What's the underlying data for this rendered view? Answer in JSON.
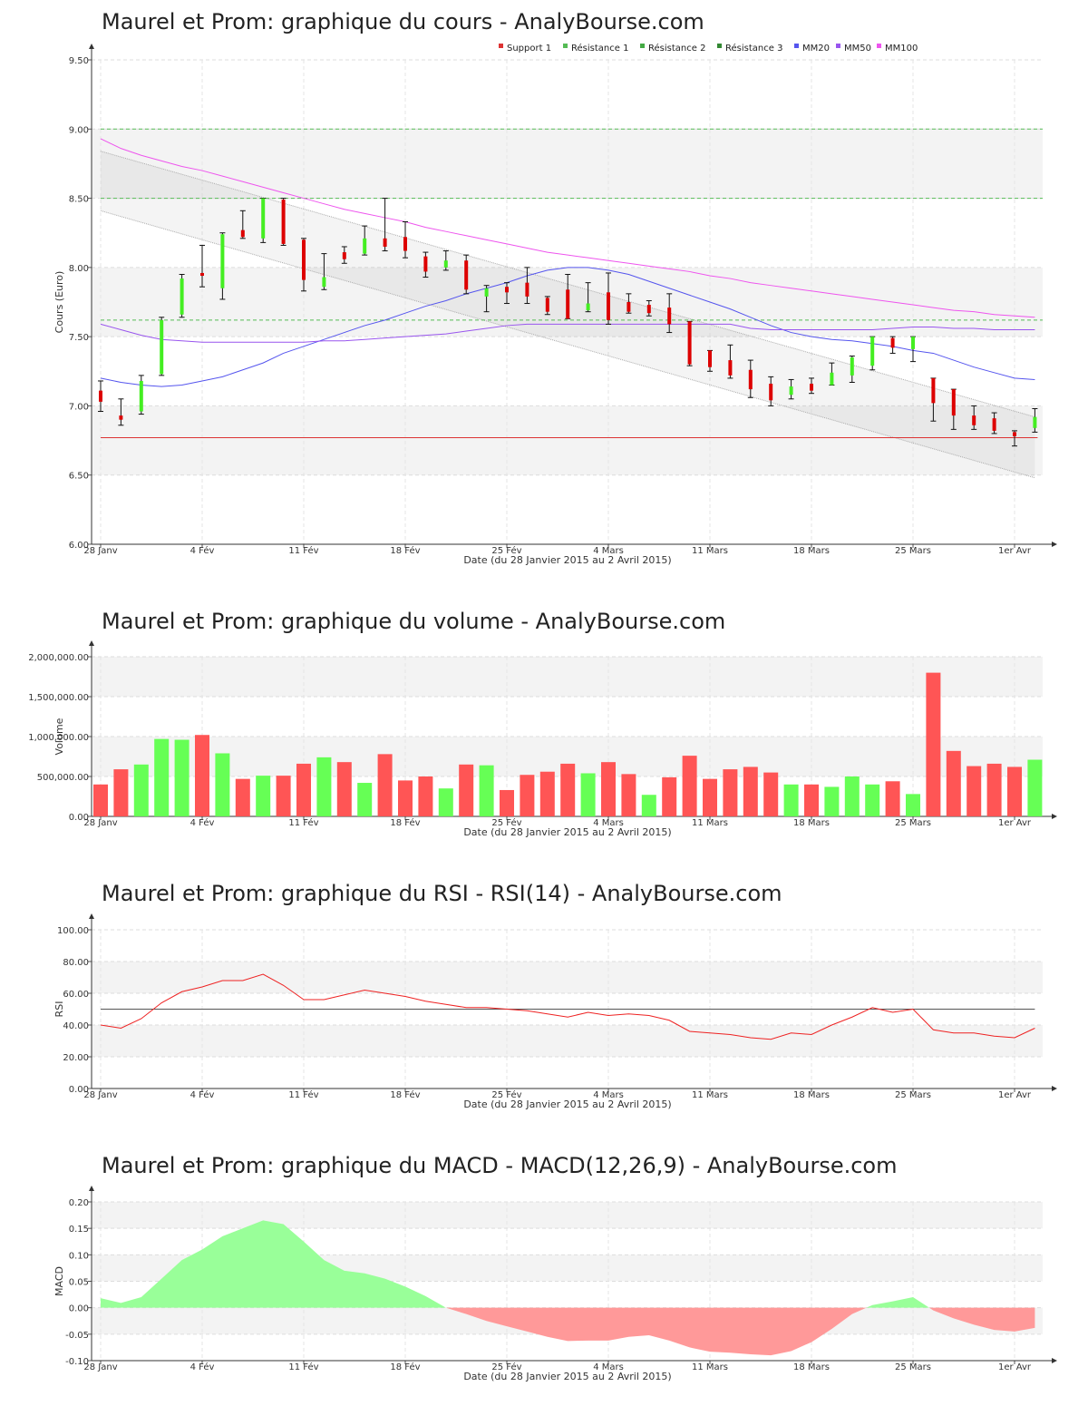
{
  "x_axis": {
    "date_label": "Date (du 28 Janvier 2015 au 2 Avril 2015)",
    "ticks": [
      {
        "i": 0,
        "label": "28 Janv"
      },
      {
        "i": 5,
        "label": "4 Fév"
      },
      {
        "i": 10,
        "label": "11 Fév"
      },
      {
        "i": 15,
        "label": "18 Fév"
      },
      {
        "i": 20,
        "label": "25 Fév"
      },
      {
        "i": 25,
        "label": "4 Mars"
      },
      {
        "i": 30,
        "label": "11 Mars"
      },
      {
        "i": 35,
        "label": "18 Mars"
      },
      {
        "i": 40,
        "label": "25 Mars"
      },
      {
        "i": 45,
        "label": "1er Avr"
      }
    ]
  },
  "colors": {
    "up": "#44ee22",
    "down": "#dd0000",
    "vol_up": "#66ff55",
    "vol_down": "#ff5555",
    "support": "#dd3333",
    "resistance": "#55bb55",
    "mm20": "#5555ee",
    "mm50": "#9955ee",
    "mm100": "#ee55ee",
    "rsi": "#ee2222",
    "macd_pos": "#99ff99",
    "macd_neg": "#ff9999"
  },
  "titles": {
    "price": "Maurel et Prom: graphique du cours - AnalyBourse.com",
    "volume": "Maurel et Prom: graphique du volume - AnalyBourse.com",
    "rsi": "Maurel et Prom: graphique du RSI - RSI(14) - AnalyBourse.com",
    "macd": "Maurel et Prom: graphique du MACD - MACD(12,26,9) - AnalyBourse.com"
  },
  "chart_data": [
    {
      "type": "candlestick",
      "title": "Maurel et Prom: graphique du cours - AnalyBourse.com",
      "xlabel": "Date (du 28 Janvier 2015 au 2 Avril 2015)",
      "ylabel": "Cours (Euro)",
      "ylim": [
        6.0,
        9.5
      ],
      "yticks": [
        "6.00",
        "6.50",
        "7.00",
        "7.50",
        "8.00",
        "8.50",
        "9.00",
        "9.50"
      ],
      "legend": [
        "Support 1",
        "Résistance 1",
        "Résistance 2",
        "Résistance 3",
        "MM20",
        "MM50",
        "MM100"
      ],
      "legend_placement": "top-right",
      "support": [
        6.77
      ],
      "resistances": [
        7.62,
        8.5,
        9.0
      ],
      "channel": {
        "upper": [
          8.84,
          6.92
        ],
        "lower": [
          8.41,
          6.48
        ]
      },
      "candles": [
        {
          "o": 7.11,
          "c": 7.03,
          "h": 7.18,
          "l": 6.96
        },
        {
          "o": 6.93,
          "c": 6.9,
          "h": 7.05,
          "l": 6.86
        },
        {
          "o": 6.96,
          "c": 7.18,
          "h": 7.22,
          "l": 6.94
        },
        {
          "o": 7.23,
          "c": 7.62,
          "h": 7.64,
          "l": 7.22
        },
        {
          "o": 7.66,
          "c": 7.92,
          "h": 7.95,
          "l": 7.64
        },
        {
          "o": 7.96,
          "c": 7.94,
          "h": 8.16,
          "l": 7.86
        },
        {
          "o": 7.85,
          "c": 8.24,
          "h": 8.25,
          "l": 7.77
        },
        {
          "o": 8.27,
          "c": 8.22,
          "h": 8.41,
          "l": 8.21
        },
        {
          "o": 8.21,
          "c": 8.5,
          "h": 8.5,
          "l": 8.18
        },
        {
          "o": 8.49,
          "c": 8.17,
          "h": 8.5,
          "l": 8.16
        },
        {
          "o": 8.2,
          "c": 7.91,
          "h": 8.21,
          "l": 7.83
        },
        {
          "o": 7.86,
          "c": 7.93,
          "h": 8.1,
          "l": 7.84
        },
        {
          "o": 8.11,
          "c": 8.06,
          "h": 8.15,
          "l": 8.03
        },
        {
          "o": 8.1,
          "c": 8.21,
          "h": 8.3,
          "l": 8.09
        },
        {
          "o": 8.21,
          "c": 8.15,
          "h": 8.5,
          "l": 8.12
        },
        {
          "o": 8.22,
          "c": 8.12,
          "h": 8.33,
          "l": 8.07
        },
        {
          "o": 8.08,
          "c": 7.97,
          "h": 8.11,
          "l": 7.93
        },
        {
          "o": 8.0,
          "c": 8.05,
          "h": 8.12,
          "l": 7.98
        },
        {
          "o": 8.05,
          "c": 7.84,
          "h": 8.09,
          "l": 7.81
        },
        {
          "o": 7.79,
          "c": 7.85,
          "h": 7.87,
          "l": 7.68
        },
        {
          "o": 7.86,
          "c": 7.82,
          "h": 7.89,
          "l": 7.74
        },
        {
          "o": 7.89,
          "c": 7.79,
          "h": 8.0,
          "l": 7.74
        },
        {
          "o": 7.78,
          "c": 7.68,
          "h": 7.79,
          "l": 7.66
        },
        {
          "o": 7.84,
          "c": 7.63,
          "h": 7.95,
          "l": 7.63
        },
        {
          "o": 7.69,
          "c": 7.74,
          "h": 7.89,
          "l": 7.68
        },
        {
          "o": 7.82,
          "c": 7.62,
          "h": 7.96,
          "l": 7.59
        },
        {
          "o": 7.75,
          "c": 7.68,
          "h": 7.81,
          "l": 7.67
        },
        {
          "o": 7.73,
          "c": 7.67,
          "h": 7.76,
          "l": 7.65
        },
        {
          "o": 7.71,
          "c": 7.59,
          "h": 7.81,
          "l": 7.53
        },
        {
          "o": 7.61,
          "c": 7.3,
          "h": 7.61,
          "l": 7.29
        },
        {
          "o": 7.4,
          "c": 7.28,
          "h": 7.4,
          "l": 7.25
        },
        {
          "o": 7.33,
          "c": 7.22,
          "h": 7.44,
          "l": 7.2
        },
        {
          "o": 7.26,
          "c": 7.12,
          "h": 7.33,
          "l": 7.06
        },
        {
          "o": 7.16,
          "c": 7.04,
          "h": 7.21,
          "l": 7.0
        },
        {
          "o": 7.08,
          "c": 7.14,
          "h": 7.19,
          "l": 7.05
        },
        {
          "o": 7.16,
          "c": 7.11,
          "h": 7.2,
          "l": 7.09
        },
        {
          "o": 7.15,
          "c": 7.24,
          "h": 7.31,
          "l": 7.15
        },
        {
          "o": 7.22,
          "c": 7.35,
          "h": 7.36,
          "l": 7.17
        },
        {
          "o": 7.29,
          "c": 7.5,
          "h": 7.5,
          "l": 7.26
        },
        {
          "o": 7.49,
          "c": 7.42,
          "h": 7.5,
          "l": 7.38
        },
        {
          "o": 7.41,
          "c": 7.5,
          "h": 7.5,
          "l": 7.32
        },
        {
          "o": 7.2,
          "c": 7.02,
          "h": 7.2,
          "l": 6.89
        },
        {
          "o": 7.12,
          "c": 6.93,
          "h": 7.12,
          "l": 6.83
        },
        {
          "o": 6.93,
          "c": 6.86,
          "h": 7.0,
          "l": 6.83
        },
        {
          "o": 6.91,
          "c": 6.82,
          "h": 6.95,
          "l": 6.8
        },
        {
          "o": 6.81,
          "c": 6.78,
          "h": 6.82,
          "l": 6.71
        },
        {
          "o": 6.84,
          "c": 6.92,
          "h": 6.98,
          "l": 6.81
        }
      ],
      "series": [
        {
          "name": "MM20",
          "values": [
            7.2,
            7.17,
            7.15,
            7.14,
            7.15,
            7.18,
            7.21,
            7.26,
            7.31,
            7.38,
            7.43,
            7.48,
            7.53,
            7.58,
            7.62,
            7.67,
            7.72,
            7.76,
            7.81,
            7.85,
            7.89,
            7.94,
            7.98,
            8.0,
            8.0,
            7.98,
            7.95,
            7.9,
            7.85,
            7.8,
            7.75,
            7.7,
            7.64,
            7.58,
            7.53,
            7.5,
            7.48,
            7.47,
            7.45,
            7.43,
            7.4,
            7.38,
            7.33,
            7.28,
            7.24,
            7.2,
            7.19
          ]
        },
        {
          "name": "MM50",
          "values": [
            7.59,
            7.55,
            7.51,
            7.48,
            7.47,
            7.46,
            7.46,
            7.46,
            7.46,
            7.46,
            7.46,
            7.47,
            7.47,
            7.48,
            7.49,
            7.5,
            7.51,
            7.52,
            7.54,
            7.56,
            7.58,
            7.59,
            7.59,
            7.59,
            7.59,
            7.59,
            7.59,
            7.59,
            7.59,
            7.59,
            7.59,
            7.59,
            7.56,
            7.55,
            7.55,
            7.55,
            7.55,
            7.55,
            7.55,
            7.56,
            7.57,
            7.57,
            7.56,
            7.56,
            7.55,
            7.55,
            7.55
          ]
        },
        {
          "name": "MM100",
          "values": [
            8.93,
            8.86,
            8.81,
            8.77,
            8.73,
            8.7,
            8.66,
            8.62,
            8.58,
            8.54,
            8.5,
            8.46,
            8.42,
            8.39,
            8.36,
            8.33,
            8.29,
            8.26,
            8.23,
            8.2,
            8.17,
            8.14,
            8.11,
            8.09,
            8.07,
            8.05,
            8.03,
            8.01,
            7.99,
            7.97,
            7.94,
            7.92,
            7.89,
            7.87,
            7.85,
            7.83,
            7.81,
            7.79,
            7.77,
            7.75,
            7.73,
            7.71,
            7.69,
            7.68,
            7.66,
            7.65,
            7.64
          ]
        }
      ]
    },
    {
      "type": "bar",
      "title": "Maurel et Prom: graphique du volume - AnalyBourse.com",
      "xlabel": "Date (du 28 Janvier 2015 au 2 Avril 2015)",
      "ylabel": "Volume",
      "ylim": [
        0,
        2000000
      ],
      "yticks": [
        "0.00",
        "500,000.00",
        "1,000,000.00",
        "1,500,000.00",
        "2,000,000.00"
      ],
      "values": [
        400000,
        590000,
        650000,
        970000,
        960000,
        1020000,
        790000,
        470000,
        510000,
        510000,
        660000,
        740000,
        680000,
        420000,
        780000,
        450000,
        500000,
        350000,
        650000,
        640000,
        330000,
        520000,
        560000,
        660000,
        540000,
        680000,
        530000,
        270000,
        490000,
        760000,
        470000,
        590000,
        620000,
        550000,
        400000,
        400000,
        370000,
        500000,
        400000,
        440000,
        280000,
        1800000,
        820000,
        630000,
        660000,
        620000,
        710000
      ],
      "direction": [
        "down",
        "down",
        "up",
        "up",
        "up",
        "down",
        "up",
        "down",
        "up",
        "down",
        "down",
        "up",
        "down",
        "up",
        "down",
        "down",
        "down",
        "up",
        "down",
        "up",
        "down",
        "down",
        "down",
        "down",
        "up",
        "down",
        "down",
        "up",
        "down",
        "down",
        "down",
        "down",
        "down",
        "down",
        "up",
        "down",
        "up",
        "up",
        "up",
        "down",
        "up",
        "down",
        "down",
        "down",
        "down",
        "down",
        "up"
      ]
    },
    {
      "type": "line",
      "title": "Maurel et Prom: graphique du RSI - RSI(14) - AnalyBourse.com",
      "xlabel": "Date (du 28 Janvier 2015 au 2 Avril 2015)",
      "ylabel": "RSI",
      "ylim": [
        0,
        100
      ],
      "yticks": [
        "0.00",
        "20.00",
        "40.00",
        "60.00",
        "80.00",
        "100.00"
      ],
      "reference_line": 50,
      "series": [
        {
          "name": "RSI",
          "values": [
            40,
            38,
            44,
            54,
            61,
            64,
            68,
            68,
            72,
            65,
            56,
            56,
            59,
            62,
            60,
            58,
            55,
            53,
            51,
            51,
            50,
            49,
            47,
            45,
            48,
            46,
            47,
            46,
            43,
            36,
            35,
            34,
            32,
            31,
            35,
            34,
            40,
            45,
            51,
            48,
            50,
            37,
            35,
            35,
            33,
            32,
            38
          ]
        }
      ]
    },
    {
      "type": "area",
      "title": "Maurel et Prom: graphique du MACD - MACD(12,26,9) - AnalyBourse.com",
      "xlabel": "Date (du 28 Janvier 2015 au 2 Avril 2015)",
      "ylabel": "MACD",
      "ylim": [
        -0.1,
        0.2
      ],
      "yticks": [
        "-0.10",
        "-0.05",
        "0.00",
        "0.05",
        "0.10",
        "0.15",
        "0.20"
      ],
      "series": [
        {
          "name": "MACD",
          "values": [
            0.018,
            0.009,
            0.02,
            0.055,
            0.09,
            0.11,
            0.135,
            0.15,
            0.165,
            0.158,
            0.125,
            0.09,
            0.07,
            0.065,
            0.055,
            0.04,
            0.022,
            0.0,
            -0.012,
            -0.025,
            -0.035,
            -0.045,
            -0.055,
            -0.063,
            -0.062,
            -0.062,
            -0.055,
            -0.052,
            -0.062,
            -0.075,
            -0.083,
            -0.085,
            -0.088,
            -0.09,
            -0.082,
            -0.065,
            -0.04,
            -0.012,
            0.005,
            0.012,
            0.02,
            -0.005,
            -0.02,
            -0.032,
            -0.042,
            -0.045,
            -0.038
          ]
        }
      ]
    }
  ]
}
